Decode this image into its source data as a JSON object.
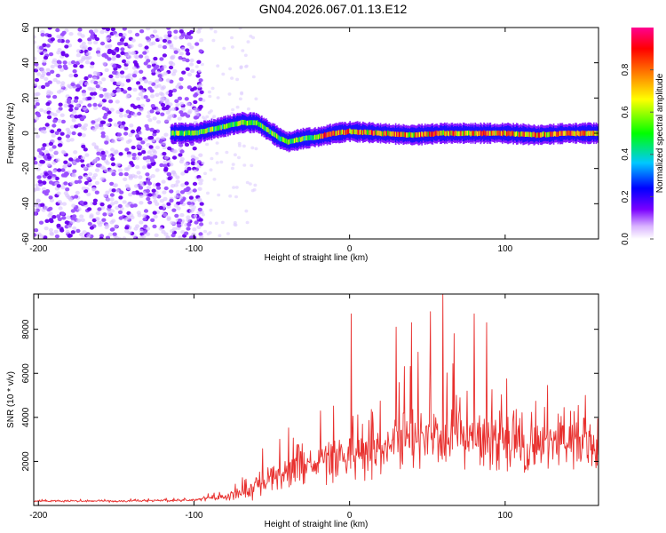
{
  "title": "GN04.2026.067.01.13.E12",
  "colors": {
    "snr_line": "#e8302e",
    "colormap": [
      "#ffffff",
      "#7a00ff",
      "#0000ff",
      "#00c8ff",
      "#00ff00",
      "#ffff00",
      "#ff8000",
      "#ff0000",
      "#ff0090"
    ]
  },
  "chart_data": [
    {
      "type": "heatmap",
      "name": "spectrogram",
      "xlabel": "Height of straight line (km)",
      "ylabel": "Frequency (Hz)",
      "xlim": [
        -203,
        160
      ],
      "ylim": [
        -60,
        60
      ],
      "xticks": [
        -200,
        -100,
        0,
        100
      ],
      "yticks": [
        -60,
        -40,
        -20,
        0,
        20,
        40,
        60
      ],
      "colorbar": {
        "label": "Normalized spectral amplitude",
        "range": [
          0.0,
          1.0
        ],
        "ticks": [
          0.0,
          0.2,
          0.4,
          0.6,
          0.8
        ]
      },
      "noise_region_km": [
        -203,
        -95
      ],
      "signal_track": {
        "x": [
          -115,
          -100,
          -90,
          -80,
          -70,
          -60,
          -55,
          -50,
          -45,
          -40,
          -35,
          -30,
          -20,
          -10,
          0,
          20,
          40,
          60,
          80,
          100,
          120,
          140,
          160
        ],
        "freq_hz": [
          0,
          0,
          2,
          4,
          6,
          6,
          3,
          0,
          -3,
          -5,
          -4,
          -3,
          -2,
          0,
          1,
          0,
          -1,
          0,
          0,
          0,
          -1,
          0,
          0
        ]
      }
    },
    {
      "type": "line",
      "name": "snr",
      "xlabel": "Height of straight line (km)",
      "ylabel": "SNR (10 * v/v)",
      "xlim": [
        -203,
        160
      ],
      "ylim": [
        0,
        9600
      ],
      "xticks": [
        -200,
        -100,
        0,
        100
      ],
      "yticks": [
        2000,
        4000,
        6000,
        8000
      ],
      "envelope": {
        "x": [
          -203,
          -150,
          -100,
          -80,
          -70,
          -60,
          -50,
          -40,
          -30,
          -20,
          -10,
          0,
          10,
          20,
          30,
          40,
          50,
          60,
          70,
          80,
          90,
          100,
          110,
          120,
          130,
          140,
          150,
          160
        ],
        "mean": [
          200,
          200,
          250,
          400,
          550,
          900,
          1200,
          1500,
          1800,
          2000,
          2200,
          2300,
          2400,
          2500,
          2800,
          3000,
          3000,
          3000,
          3000,
          3000,
          3000,
          2900,
          2900,
          2900,
          2900,
          2900,
          2900,
          2900
        ],
        "spread": [
          60,
          70,
          100,
          250,
          450,
          800,
          1000,
          1200,
          1300,
          1400,
          1500,
          1600,
          1700,
          1800,
          1900,
          2000,
          2000,
          2000,
          2100,
          2000,
          2000,
          2000,
          1900,
          1800,
          1800,
          1800,
          1800,
          1700
        ]
      },
      "peaks": [
        {
          "x": 1,
          "y": 8700
        },
        {
          "x": 30,
          "y": 8100
        },
        {
          "x": 40,
          "y": 8300
        },
        {
          "x": 52,
          "y": 8800
        },
        {
          "x": 60,
          "y": 9600
        },
        {
          "x": 67,
          "y": 7800
        },
        {
          "x": 80,
          "y": 8700
        },
        {
          "x": 88,
          "y": 8300
        }
      ]
    }
  ]
}
